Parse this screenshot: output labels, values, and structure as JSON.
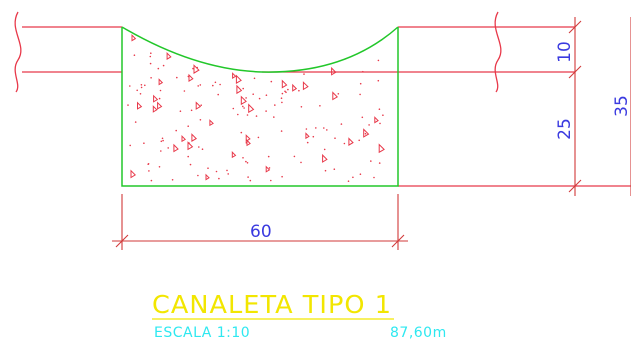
{
  "dimensions": {
    "width": "60",
    "top_depth": "10",
    "bottom_depth": "25",
    "total_depth": "35"
  },
  "title_block": {
    "title": "CANALETA TIPO 1",
    "scale": "ESCALA 1:10",
    "length": "87,60m"
  },
  "colors": {
    "concrete_outline": "#22c72a",
    "ground_lines": "#e8394a",
    "dimension_lines": "#d23a3a",
    "dimension_text": "#3a3ae0",
    "title": "#f2e600",
    "subtitle": "#2ee8f0"
  }
}
